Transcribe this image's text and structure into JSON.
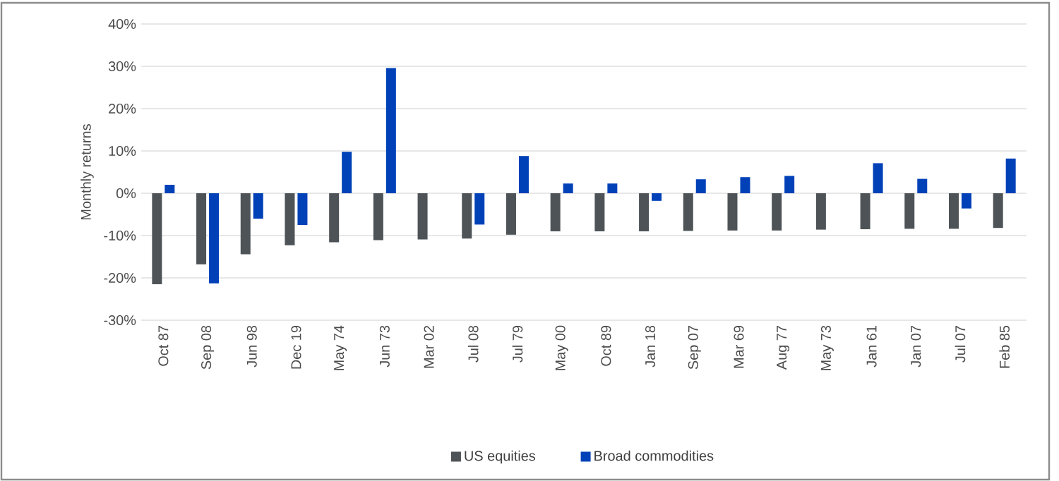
{
  "chart_data": {
    "type": "bar",
    "ylabel": "Monthly returns",
    "categories": [
      "Oct 87",
      "Sep 08",
      "Jun 98",
      "Dec 19",
      "May 74",
      "Jun 73",
      "Mar 02",
      "Jul 08",
      "Jul 79",
      "May 00",
      "Oct 89",
      "Jan 18",
      "Sep 07",
      "Mar 69",
      "Aug 77",
      "May 73",
      "Jan 61",
      "Jan 07",
      "Jul 07",
      "Feb 85"
    ],
    "series": [
      {
        "name": "US equities",
        "color": "#4d5356",
        "values": [
          -21.5,
          -16.8,
          -14.4,
          -12.3,
          -11.6,
          -11.1,
          -10.9,
          -10.7,
          -9.8,
          -9.0,
          -9.0,
          -9.0,
          -8.9,
          -8.8,
          -8.8,
          -8.6,
          -8.5,
          -8.4,
          -8.4,
          -8.2
        ]
      },
      {
        "name": "Broad commodities",
        "color": "#0041b8",
        "values": [
          2.0,
          -21.3,
          -6.0,
          -7.5,
          9.8,
          29.6,
          0,
          -7.4,
          8.8,
          2.3,
          2.3,
          -1.8,
          3.3,
          3.8,
          4.1,
          0,
          7.1,
          3.4,
          -3.6,
          8.2
        ]
      }
    ],
    "ylim": [
      -30,
      40
    ],
    "yticks": [
      {
        "value": -30,
        "label": "-30%"
      },
      {
        "value": -20,
        "label": "-20%"
      },
      {
        "value": -10,
        "label": "-10%"
      },
      {
        "value": 0,
        "label": "0%"
      },
      {
        "value": 10,
        "label": "10%"
      },
      {
        "value": 20,
        "label": "20%"
      },
      {
        "value": 30,
        "label": "30%"
      },
      {
        "value": 40,
        "label": "40%"
      }
    ],
    "grid": "y",
    "legend": "bottom"
  }
}
